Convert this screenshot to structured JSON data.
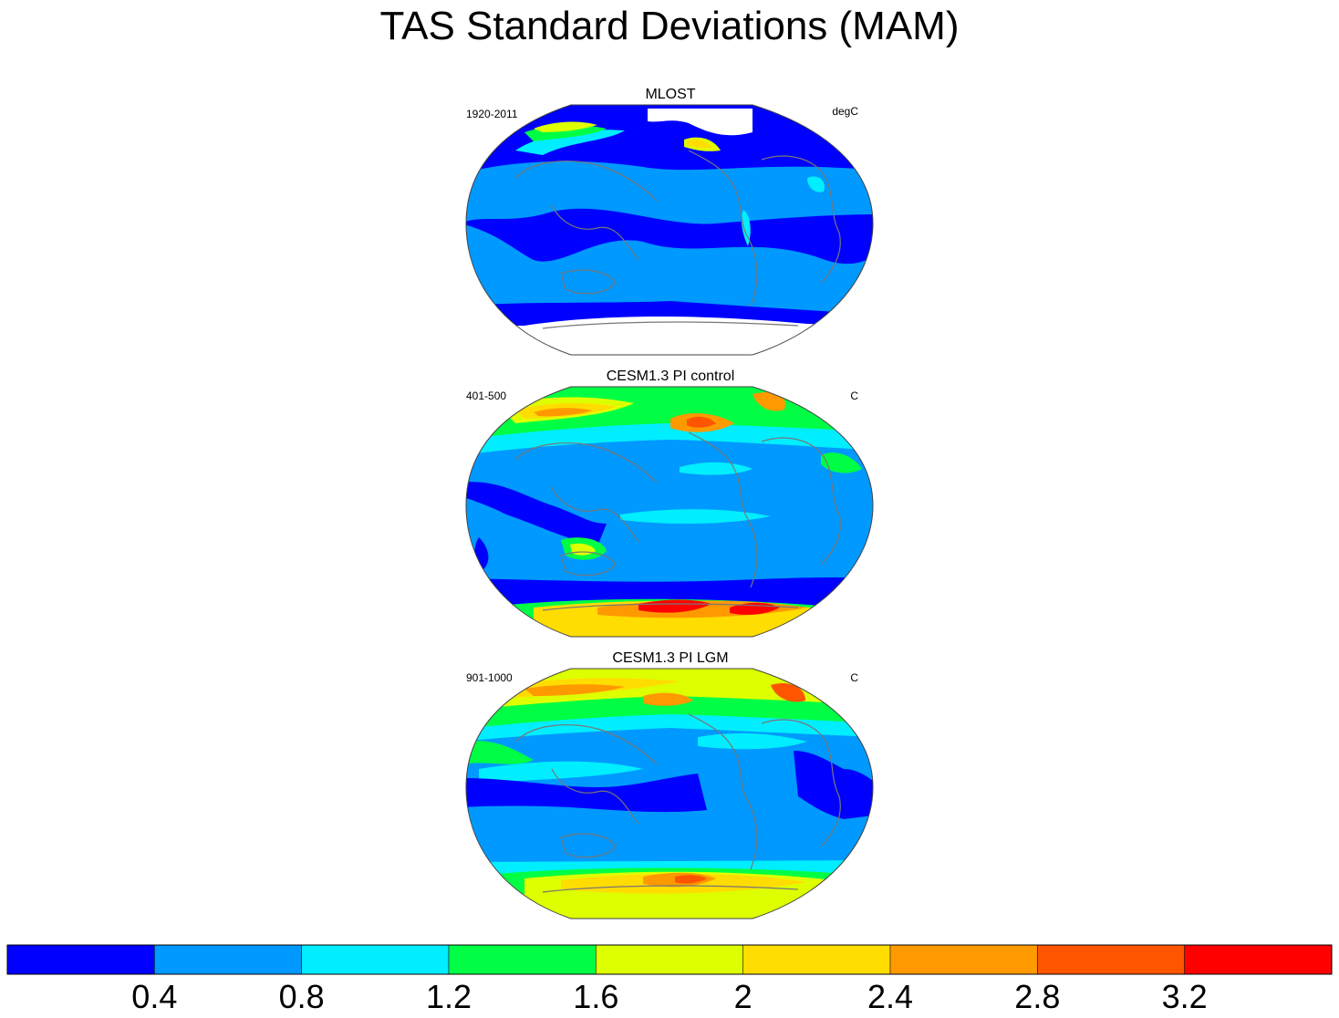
{
  "title": "TAS Standard Deviations (MAM)",
  "panels": [
    {
      "title": "MLOST",
      "left_label": "1920-2011",
      "right_label": "degC"
    },
    {
      "title": "CESM1.3 PI control",
      "left_label": "401-500",
      "right_label": "C"
    },
    {
      "title": "CESM1.3 PI LGM",
      "left_label": "901-1000",
      "right_label": "C"
    }
  ],
  "colorbar": {
    "labels": [
      "0.4",
      "0.8",
      "1.2",
      "1.6",
      "2",
      "2.4",
      "2.8",
      "3.2"
    ],
    "colors": [
      "#0000ff",
      "#0099ff",
      "#00eeff",
      "#00ff44",
      "#ddff00",
      "#ffdd00",
      "#ff9900",
      "#ff5500",
      "#ff0000"
    ]
  }
}
